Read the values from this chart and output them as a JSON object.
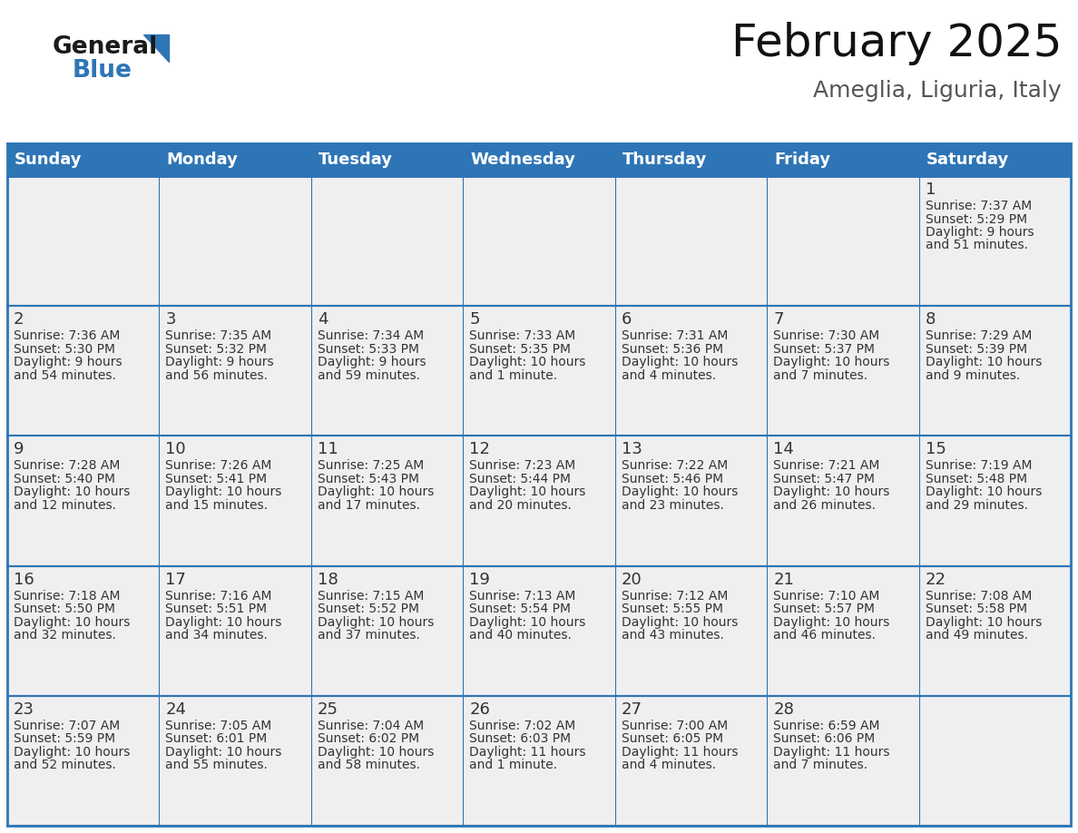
{
  "title": "February 2025",
  "subtitle": "Ameglia, Liguria, Italy",
  "header_bg": "#2E75B6",
  "header_text": "#FFFFFF",
  "cell_bg_odd": "#EFEFEF",
  "cell_bg_even": "#EFEFEF",
  "border_color": "#2E75B6",
  "day_text_color": "#333333",
  "info_text_color": "#333333",
  "days_of_week": [
    "Sunday",
    "Monday",
    "Tuesday",
    "Wednesday",
    "Thursday",
    "Friday",
    "Saturday"
  ],
  "calendar_data": [
    [
      null,
      null,
      null,
      null,
      null,
      null,
      {
        "day": "1",
        "sunrise": "7:37 AM",
        "sunset": "5:29 PM",
        "daylight_l1": "Daylight: 9 hours",
        "daylight_l2": "and 51 minutes."
      }
    ],
    [
      {
        "day": "2",
        "sunrise": "7:36 AM",
        "sunset": "5:30 PM",
        "daylight_l1": "Daylight: 9 hours",
        "daylight_l2": "and 54 minutes."
      },
      {
        "day": "3",
        "sunrise": "7:35 AM",
        "sunset": "5:32 PM",
        "daylight_l1": "Daylight: 9 hours",
        "daylight_l2": "and 56 minutes."
      },
      {
        "day": "4",
        "sunrise": "7:34 AM",
        "sunset": "5:33 PM",
        "daylight_l1": "Daylight: 9 hours",
        "daylight_l2": "and 59 minutes."
      },
      {
        "day": "5",
        "sunrise": "7:33 AM",
        "sunset": "5:35 PM",
        "daylight_l1": "Daylight: 10 hours",
        "daylight_l2": "and 1 minute."
      },
      {
        "day": "6",
        "sunrise": "7:31 AM",
        "sunset": "5:36 PM",
        "daylight_l1": "Daylight: 10 hours",
        "daylight_l2": "and 4 minutes."
      },
      {
        "day": "7",
        "sunrise": "7:30 AM",
        "sunset": "5:37 PM",
        "daylight_l1": "Daylight: 10 hours",
        "daylight_l2": "and 7 minutes."
      },
      {
        "day": "8",
        "sunrise": "7:29 AM",
        "sunset": "5:39 PM",
        "daylight_l1": "Daylight: 10 hours",
        "daylight_l2": "and 9 minutes."
      }
    ],
    [
      {
        "day": "9",
        "sunrise": "7:28 AM",
        "sunset": "5:40 PM",
        "daylight_l1": "Daylight: 10 hours",
        "daylight_l2": "and 12 minutes."
      },
      {
        "day": "10",
        "sunrise": "7:26 AM",
        "sunset": "5:41 PM",
        "daylight_l1": "Daylight: 10 hours",
        "daylight_l2": "and 15 minutes."
      },
      {
        "day": "11",
        "sunrise": "7:25 AM",
        "sunset": "5:43 PM",
        "daylight_l1": "Daylight: 10 hours",
        "daylight_l2": "and 17 minutes."
      },
      {
        "day": "12",
        "sunrise": "7:23 AM",
        "sunset": "5:44 PM",
        "daylight_l1": "Daylight: 10 hours",
        "daylight_l2": "and 20 minutes."
      },
      {
        "day": "13",
        "sunrise": "7:22 AM",
        "sunset": "5:46 PM",
        "daylight_l1": "Daylight: 10 hours",
        "daylight_l2": "and 23 minutes."
      },
      {
        "day": "14",
        "sunrise": "7:21 AM",
        "sunset": "5:47 PM",
        "daylight_l1": "Daylight: 10 hours",
        "daylight_l2": "and 26 minutes."
      },
      {
        "day": "15",
        "sunrise": "7:19 AM",
        "sunset": "5:48 PM",
        "daylight_l1": "Daylight: 10 hours",
        "daylight_l2": "and 29 minutes."
      }
    ],
    [
      {
        "day": "16",
        "sunrise": "7:18 AM",
        "sunset": "5:50 PM",
        "daylight_l1": "Daylight: 10 hours",
        "daylight_l2": "and 32 minutes."
      },
      {
        "day": "17",
        "sunrise": "7:16 AM",
        "sunset": "5:51 PM",
        "daylight_l1": "Daylight: 10 hours",
        "daylight_l2": "and 34 minutes."
      },
      {
        "day": "18",
        "sunrise": "7:15 AM",
        "sunset": "5:52 PM",
        "daylight_l1": "Daylight: 10 hours",
        "daylight_l2": "and 37 minutes."
      },
      {
        "day": "19",
        "sunrise": "7:13 AM",
        "sunset": "5:54 PM",
        "daylight_l1": "Daylight: 10 hours",
        "daylight_l2": "and 40 minutes."
      },
      {
        "day": "20",
        "sunrise": "7:12 AM",
        "sunset": "5:55 PM",
        "daylight_l1": "Daylight: 10 hours",
        "daylight_l2": "and 43 minutes."
      },
      {
        "day": "21",
        "sunrise": "7:10 AM",
        "sunset": "5:57 PM",
        "daylight_l1": "Daylight: 10 hours",
        "daylight_l2": "and 46 minutes."
      },
      {
        "day": "22",
        "sunrise": "7:08 AM",
        "sunset": "5:58 PM",
        "daylight_l1": "Daylight: 10 hours",
        "daylight_l2": "and 49 minutes."
      }
    ],
    [
      {
        "day": "23",
        "sunrise": "7:07 AM",
        "sunset": "5:59 PM",
        "daylight_l1": "Daylight: 10 hours",
        "daylight_l2": "and 52 minutes."
      },
      {
        "day": "24",
        "sunrise": "7:05 AM",
        "sunset": "6:01 PM",
        "daylight_l1": "Daylight: 10 hours",
        "daylight_l2": "and 55 minutes."
      },
      {
        "day": "25",
        "sunrise": "7:04 AM",
        "sunset": "6:02 PM",
        "daylight_l1": "Daylight: 10 hours",
        "daylight_l2": "and 58 minutes."
      },
      {
        "day": "26",
        "sunrise": "7:02 AM",
        "sunset": "6:03 PM",
        "daylight_l1": "Daylight: 11 hours",
        "daylight_l2": "and 1 minute."
      },
      {
        "day": "27",
        "sunrise": "7:00 AM",
        "sunset": "6:05 PM",
        "daylight_l1": "Daylight: 11 hours",
        "daylight_l2": "and 4 minutes."
      },
      {
        "day": "28",
        "sunrise": "6:59 AM",
        "sunset": "6:06 PM",
        "daylight_l1": "Daylight: 11 hours",
        "daylight_l2": "and 7 minutes."
      },
      null
    ]
  ],
  "logo_color_general": "#1a1a1a",
  "logo_color_blue": "#2E75B6",
  "title_fontsize": 36,
  "subtitle_fontsize": 18,
  "header_fontsize": 13,
  "day_num_fontsize": 13,
  "info_fontsize": 10
}
